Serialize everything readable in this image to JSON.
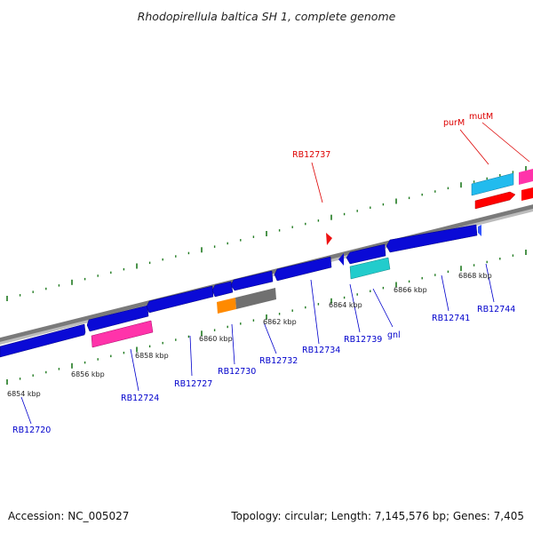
{
  "title": "Rhodopirellula baltica SH 1, complete genome",
  "footer": {
    "accession": "Accession: NC_005027",
    "summary": "Topology: circular; Length: 7,145,576 bp; Genes: 7,405"
  },
  "colors": {
    "backbone": "#7a7a7a",
    "tick": "#1f7a1f",
    "forward_label": "#dd0000",
    "reverse_label": "#0000cc",
    "cds": "#0a0ad6",
    "rna_pink": "#ff33aa",
    "sky": "#22bbee",
    "teal": "#22cccc",
    "red": "#ff0000",
    "orange": "#ff8a00",
    "gray": "#707070"
  },
  "kbp_labels": [
    "6854 kbp",
    "6856 kbp",
    "6858 kbp",
    "6860 kbp",
    "6862 kbp",
    "6864 kbp",
    "6866 kbp",
    "6868 kbp"
  ],
  "gene_labels_top": [
    "RB12737",
    "purM",
    "mutM"
  ],
  "gene_labels_bottom": [
    "RB12720",
    "RB12724",
    "RB12727",
    "RB12730",
    "RB12732",
    "RB12734",
    "RB12739",
    "gnl",
    "RB12741",
    "RB12744"
  ]
}
